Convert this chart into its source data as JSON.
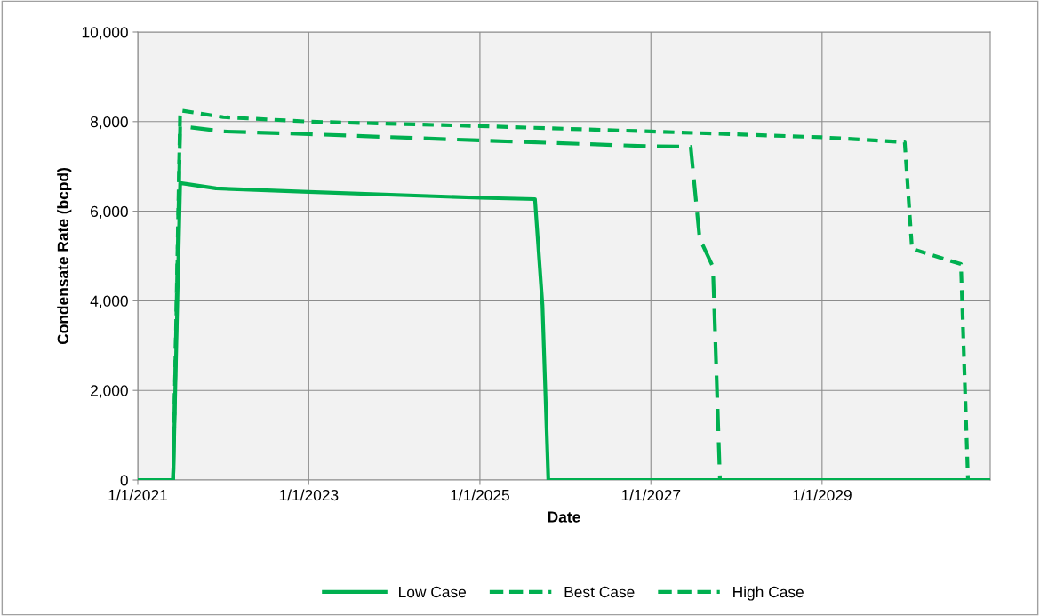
{
  "chart_data": {
    "type": "line",
    "xlabel": "Date",
    "ylabel": "Condensate Rate (bcpd)",
    "xlim": [
      "2021-01-01",
      "2030-12-20"
    ],
    "xticks": [
      {
        "value": "2021-01-01",
        "label": "1/1/2021"
      },
      {
        "value": "2023-01-01",
        "label": "1/1/2023"
      },
      {
        "value": "2025-01-01",
        "label": "1/1/2025"
      },
      {
        "value": "2027-01-01",
        "label": "1/1/2027"
      },
      {
        "value": "2029-01-01",
        "label": "1/1/2029"
      }
    ],
    "ylim": [
      0,
      10000
    ],
    "yticks": [
      {
        "value": 0,
        "label": "0"
      },
      {
        "value": 2000,
        "label": "2,000"
      },
      {
        "value": 4000,
        "label": "4,000"
      },
      {
        "value": 6000,
        "label": "6,000"
      },
      {
        "value": 8000,
        "label": "8,000"
      },
      {
        "value": 10000,
        "label": "10,000"
      }
    ],
    "grid": true,
    "legend": "bottom",
    "marker": "none",
    "series": [
      {
        "name": "Low Case",
        "color": "#00b050",
        "line_style": "solid",
        "x": [
          "2021-01-01",
          "2021-06-01",
          "2021-07-01",
          "2021-12-01",
          "2023-01-01",
          "2025-01-01",
          "2025-08-24",
          "2025-09-25",
          "2025-10-20",
          "2030-12-20"
        ],
        "values": [
          0,
          0,
          6630,
          6510,
          6430,
          6300,
          6270,
          3900,
          0,
          0
        ]
      },
      {
        "name": "Best Case",
        "color": "#00b050",
        "line_style": "dashed",
        "x": [
          "2021-01-01",
          "2021-06-01",
          "2021-07-01",
          "2022-01-01",
          "2023-01-01",
          "2025-01-01",
          "2027-01-01",
          "2027-06-20",
          "2027-07-30",
          "2027-08-10",
          "2027-09-23",
          "2027-10-23",
          "2030-12-20"
        ],
        "values": [
          0,
          0,
          7900,
          7780,
          7720,
          7580,
          7450,
          7440,
          5300,
          5250,
          4760,
          0,
          0
        ]
      },
      {
        "name": "High Case",
        "color": "#00b050",
        "line_style": "dotted",
        "x": [
          "2021-01-01",
          "2021-06-01",
          "2021-07-01",
          "2022-01-01",
          "2023-01-01",
          "2025-01-01",
          "2027-01-01",
          "2029-01-01",
          "2029-12-20",
          "2030-01-20",
          "2030-08-17",
          "2030-09-16",
          "2030-12-20"
        ],
        "values": [
          0,
          0,
          8250,
          8100,
          8000,
          7900,
          7780,
          7650,
          7540,
          5160,
          4820,
          0,
          0
        ]
      }
    ]
  }
}
